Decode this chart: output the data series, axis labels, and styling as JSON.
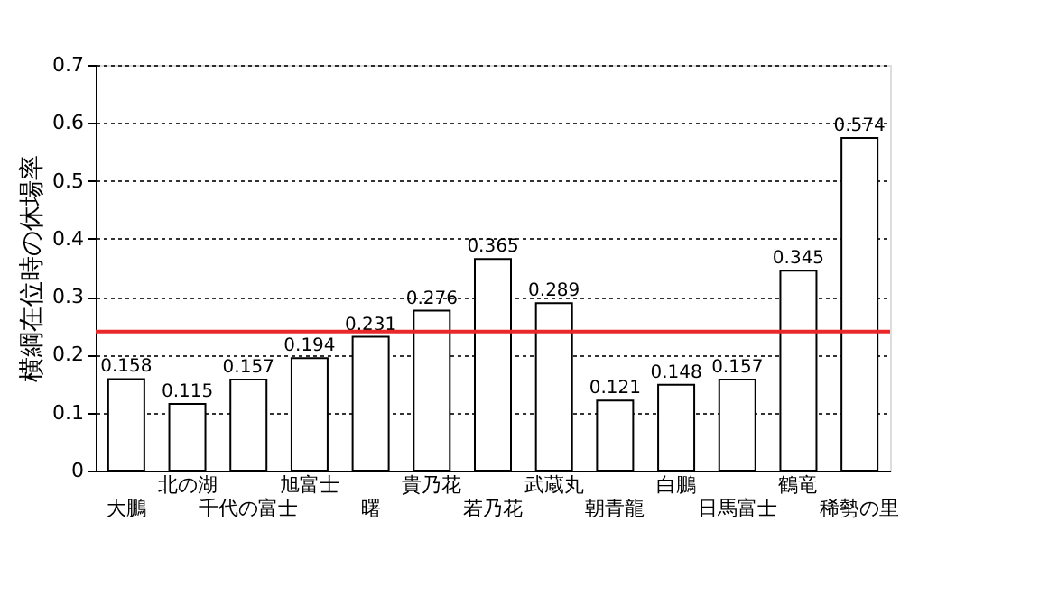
{
  "chart_data": {
    "type": "bar",
    "ylabel": "横綱在位時の休場率",
    "categories": [
      "大鵬",
      "北の湖",
      "千代の富士",
      "旭富士",
      "曙",
      "貴乃花",
      "若乃花",
      "武蔵丸",
      "朝青龍",
      "白鵬",
      "日馬富士",
      "鶴竜",
      "稀勢の里"
    ],
    "values": [
      0.158,
      0.115,
      0.157,
      0.194,
      0.231,
      0.276,
      0.365,
      0.289,
      0.121,
      0.148,
      0.157,
      0.345,
      0.574
    ],
    "color": "#ffffff",
    "ylim": [
      0,
      0.7
    ],
    "yticks": [
      0,
      0.1,
      0.2,
      0.3,
      0.4,
      0.5,
      0.6,
      0.7
    ],
    "grid": "y",
    "data_labels": true,
    "ref_lines": [
      {
        "axis": "y",
        "value": 0.24,
        "color": "#e8282b",
        "line_style": "solid"
      }
    ]
  }
}
